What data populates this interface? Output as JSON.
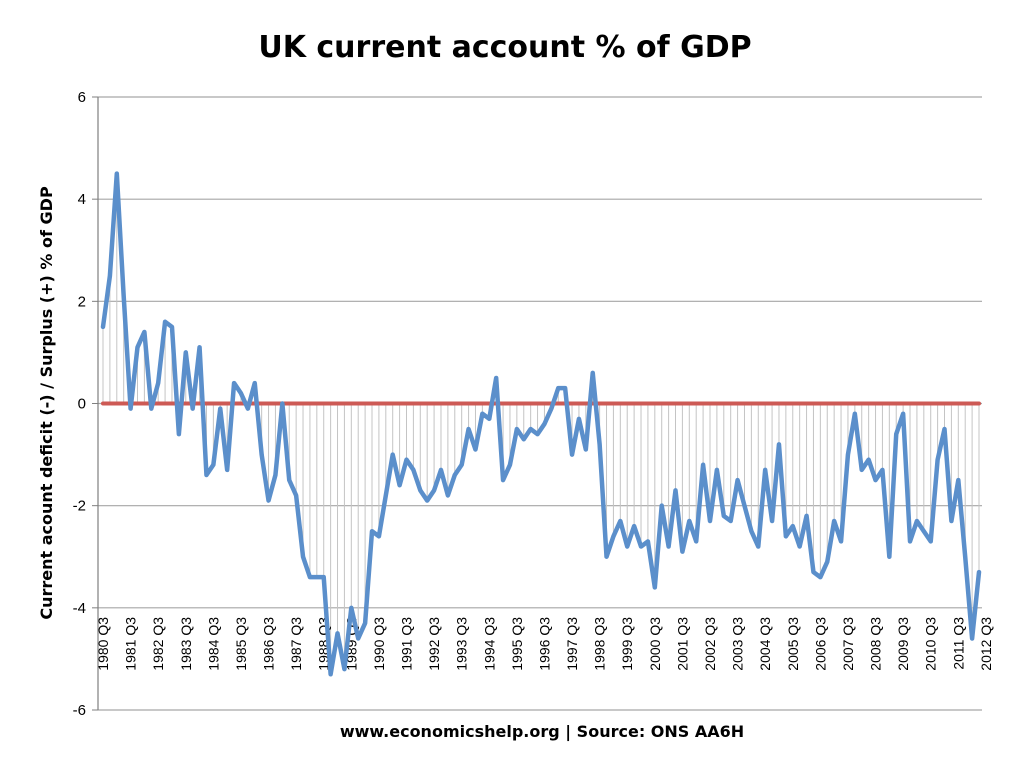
{
  "chart_data": {
    "type": "line",
    "title": "UK current account % of GDP",
    "xlabel": "www.economicshelp.org | Source: ONS AA6H",
    "ylabel": "Current acount  deficit (-) / Surplus (+) % of GDP",
    "ylim": [
      -6,
      6
    ],
    "yticks": [
      6,
      4,
      2,
      0,
      -2,
      -4,
      -6
    ],
    "grid": true,
    "legend": "none",
    "x_tick_labels": [
      "1980 Q3",
      "1981 Q3",
      "1982 Q3",
      "1983 Q3",
      "1984 Q3",
      "1985 Q3",
      "1986 Q3",
      "1987 Q3",
      "1988 Q3",
      "1989 Q3",
      "1990 Q3",
      "1991 Q3",
      "1992 Q3",
      "1993 Q3",
      "1994 Q3",
      "1995 Q3",
      "1996 Q3",
      "1997 Q3",
      "1998 Q3",
      "1999 Q3",
      "2000 Q3",
      "2001 Q3",
      "2002 Q3",
      "2003 Q3",
      "2004 Q3",
      "2005 Q3",
      "2006 Q3",
      "2007 Q3",
      "2008 Q3",
      "2009 Q3",
      "2010 Q3",
      "2011 Q3",
      "2012 Q3"
    ],
    "series": [
      {
        "color": "#5b8fcb",
        "values": [
          1.5,
          2.5,
          4.5,
          2.1,
          -0.1,
          1.1,
          1.4,
          -0.1,
          0.4,
          1.6,
          1.5,
          -0.6,
          1.0,
          -0.1,
          1.1,
          -1.4,
          -1.2,
          -0.1,
          -1.3,
          0.4,
          0.2,
          -0.1,
          0.4,
          -1.0,
          -1.9,
          -1.4,
          0.0,
          -1.5,
          -1.8,
          -3.0,
          -3.4,
          -3.4,
          -3.4,
          -5.3,
          -4.5,
          -5.2,
          -4.0,
          -4.6,
          -4.3,
          -2.5,
          -2.6,
          -1.8,
          -1.0,
          -1.6,
          -1.1,
          -1.3,
          -1.7,
          -1.9,
          -1.7,
          -1.3,
          -1.8,
          -1.4,
          -1.2,
          -0.5,
          -0.9,
          -0.2,
          -0.3,
          0.5,
          -1.5,
          -1.2,
          -0.5,
          -0.7,
          -0.5,
          -0.6,
          -0.4,
          -0.1,
          0.3,
          0.3,
          -1.0,
          -0.3,
          -0.9,
          0.6,
          -0.8,
          -3.0,
          -2.6,
          -2.3,
          -2.8,
          -2.4,
          -2.8,
          -2.7,
          -3.6,
          -2.0,
          -2.8,
          -1.7,
          -2.9,
          -2.3,
          -2.7,
          -1.2,
          -2.3,
          -1.3,
          -2.2,
          -2.3,
          -1.5,
          -2.0,
          -2.5,
          -2.8,
          -1.3,
          -2.3,
          -0.8,
          -2.6,
          -2.4,
          -2.8,
          -2.2,
          -3.3,
          -3.4,
          -3.1,
          -2.3,
          -2.7,
          -1.0,
          -0.2,
          -1.3,
          -1.1,
          -1.5,
          -1.3,
          -3.0,
          -0.6,
          -0.2,
          -2.7,
          -2.3,
          -2.5,
          -2.7,
          -1.1,
          -0.5,
          -2.3,
          -1.5,
          -3.0,
          -4.6,
          -3.3
        ]
      },
      {
        "color": "#cd5a55",
        "values": [
          0.0
        ]
      }
    ]
  }
}
